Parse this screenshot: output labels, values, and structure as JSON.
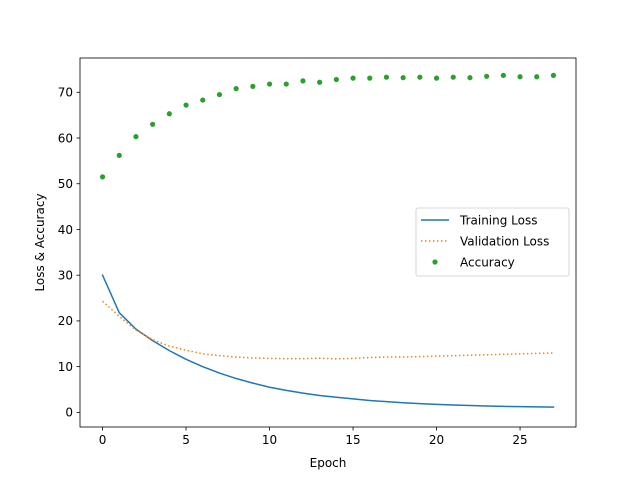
{
  "chart_data": {
    "type": "line",
    "title": "",
    "xlabel": "Epoch",
    "ylabel": "Loss & Accuracy",
    "xlim": [
      -1.35,
      28.35
    ],
    "ylim": [
      -3.2,
      77.5
    ],
    "xticks": [
      0,
      5,
      10,
      15,
      20,
      25
    ],
    "yticks": [
      0,
      10,
      20,
      30,
      40,
      50,
      60,
      70
    ],
    "grid": false,
    "legend_position": "center-right",
    "x": [
      0,
      1,
      2,
      3,
      4,
      5,
      6,
      7,
      8,
      9,
      10,
      11,
      12,
      13,
      14,
      15,
      16,
      17,
      18,
      19,
      20,
      21,
      22,
      23,
      24,
      25,
      26,
      27
    ],
    "series": [
      {
        "name": "Training Loss",
        "style": "solid",
        "marker": "none",
        "color": "#1f77b4",
        "values": [
          30.0,
          21.8,
          18.2,
          15.7,
          13.5,
          11.6,
          10.0,
          8.6,
          7.4,
          6.4,
          5.5,
          4.8,
          4.2,
          3.7,
          3.3,
          2.95,
          2.6,
          2.35,
          2.1,
          1.9,
          1.75,
          1.6,
          1.5,
          1.4,
          1.3,
          1.25,
          1.2,
          1.15
        ]
      },
      {
        "name": "Validation Loss",
        "style": "dotted",
        "marker": "none",
        "color": "#ff7f0e",
        "values": [
          24.3,
          21.0,
          18.0,
          15.9,
          14.5,
          13.6,
          12.8,
          12.4,
          12.1,
          11.9,
          11.8,
          11.75,
          11.75,
          11.85,
          11.7,
          11.8,
          12.0,
          12.1,
          12.1,
          12.2,
          12.3,
          12.4,
          12.5,
          12.6,
          12.7,
          12.8,
          12.9,
          13.0
        ]
      },
      {
        "name": "Accuracy",
        "style": "none",
        "marker": "dot",
        "color": "#2ca02c",
        "values": [
          51.5,
          56.2,
          60.3,
          63.0,
          65.3,
          67.2,
          68.3,
          69.5,
          70.8,
          71.3,
          71.8,
          71.8,
          72.5,
          72.2,
          72.8,
          73.1,
          73.1,
          73.3,
          73.2,
          73.3,
          73.1,
          73.3,
          73.2,
          73.5,
          73.7,
          73.4,
          73.4,
          73.7
        ]
      }
    ]
  }
}
